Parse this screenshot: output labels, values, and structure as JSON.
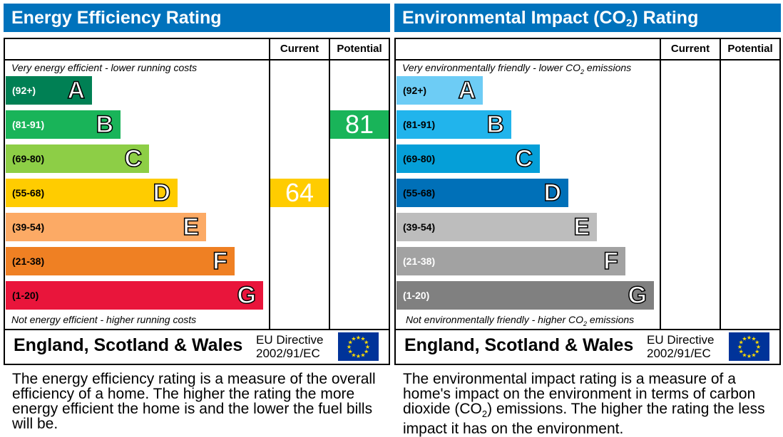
{
  "chart_data": [
    {
      "type": "bar",
      "title": "Energy Efficiency Rating",
      "columns": [
        "Current",
        "Potential"
      ],
      "top_note": "Very energy efficient - lower running costs",
      "bottom_note": "Not energy efficient - higher running costs",
      "bands": [
        {
          "letter": "A",
          "range": "(92+)",
          "color": "#008054",
          "text": "#fff"
        },
        {
          "letter": "B",
          "range": "(81-91)",
          "color": "#19b459",
          "text": "#fff"
        },
        {
          "letter": "C",
          "range": "(69-80)",
          "color": "#8dce46",
          "text": "#000"
        },
        {
          "letter": "D",
          "range": "(55-68)",
          "color": "#ffcc00",
          "text": "#000"
        },
        {
          "letter": "E",
          "range": "(39-54)",
          "color": "#fcaa65",
          "text": "#000"
        },
        {
          "letter": "F",
          "range": "(21-38)",
          "color": "#ef8023",
          "text": "#000"
        },
        {
          "letter": "G",
          "range": "(1-20)",
          "color": "#e9153b",
          "text": "#000"
        }
      ],
      "current": {
        "value": "64",
        "band": "D",
        "color": "#ffcc00"
      },
      "potential": {
        "value": "81",
        "band": "B",
        "color": "#19b459"
      },
      "footer": "England, Scotland & Wales",
      "directive": [
        "EU Directive",
        "2002/91/EC"
      ],
      "description": "The energy efficiency rating is a measure of the overall efficiency of a home. The higher the rating the more energy efficient the home is and the lower the fuel bills will be."
    },
    {
      "type": "bar",
      "title": "Environmental Impact (CO2) Rating",
      "columns": [
        "Current",
        "Potential"
      ],
      "top_note": "Very environmentally friendly - lower CO2 emissions",
      "bottom_note": "Not environmentally friendly - higher CO2 emissions",
      "bands": [
        {
          "letter": "A",
          "range": "(92+)",
          "color": "#6dccf5",
          "text": "#000"
        },
        {
          "letter": "B",
          "range": "(81-91)",
          "color": "#21b4ec",
          "text": "#000"
        },
        {
          "letter": "C",
          "range": "(69-80)",
          "color": "#059fd8",
          "text": "#000"
        },
        {
          "letter": "D",
          "range": "(55-68)",
          "color": "#0070b8",
          "text": "#000"
        },
        {
          "letter": "E",
          "range": "(39-54)",
          "color": "#bdbdbd",
          "text": "#000"
        },
        {
          "letter": "F",
          "range": "(21-38)",
          "color": "#a2a2a2",
          "text": "#fff"
        },
        {
          "letter": "G",
          "range": "(1-20)",
          "color": "#808080",
          "text": "#fff"
        }
      ],
      "current": null,
      "potential": null,
      "footer": "England, Scotland & Wales",
      "directive": [
        "EU Directive",
        "2002/91/EC"
      ],
      "description": "The environmental impact rating is a measure of a home's impact on the environment in terms of carbon dioxide (CO2) emissions. The higher the rating the less impact it has on the environment."
    }
  ]
}
